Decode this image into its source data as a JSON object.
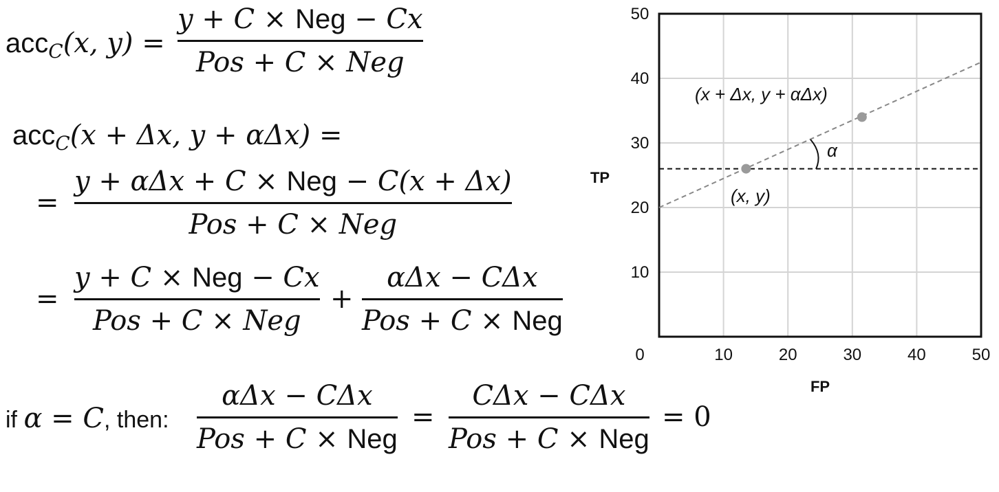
{
  "eq1": {
    "lhs_prefix": "acc",
    "lhs_sub": "C",
    "lhs_args": "(x, y) =",
    "num_a": "y + C × ",
    "num_neg": "Neg",
    "num_b": " − Cx",
    "den": "Pos + C × Neg"
  },
  "eq2": {
    "lhs_prefix": "acc",
    "lhs_sub": "C",
    "lhs_args": "(x + Δx, y + αΔx) =",
    "eq_sign": "=",
    "num_a": "y + αΔx + C × ",
    "num_neg": "Neg",
    "num_b": " − C(x + Δx)",
    "den": "Pos + C × Neg"
  },
  "eq3": {
    "eq_sign": "=",
    "f1_num_a": "y + C × ",
    "f1_num_neg": "Neg",
    "f1_num_b": " − Cx",
    "f1_den": "Pos + C × Neg",
    "plus": "+",
    "f2_num": "αΔx − CΔx",
    "f2_den_a": "Pos + C × ",
    "f2_den_neg": "Neg"
  },
  "eq4": {
    "if_word": "if ",
    "cond": "α = C",
    "then_word": ", then: ",
    "f1_num": "αΔx − CΔx",
    "f1_den_a": "Pos + C × ",
    "f1_den_neg": "Neg",
    "eq_sign": "=",
    "f2_num": "CΔx − CΔx",
    "f2_den_a": "Pos + C × ",
    "f2_den_neg": "Neg",
    "result": "= 0"
  },
  "plot": {
    "xlabel": "FP",
    "ylabel": "TP",
    "xticks": [
      "0",
      "10",
      "20",
      "30",
      "40",
      "50"
    ],
    "yticks": [
      "10",
      "20",
      "30",
      "40",
      "50"
    ],
    "point1_label": "(x, y)",
    "point2_label": "(x + Δx, y + αΔx)",
    "angle_label": "α"
  },
  "chart_data": {
    "type": "scatter",
    "xlabel": "FP",
    "ylabel": "TP",
    "xlim": [
      0,
      50
    ],
    "ylim": [
      0,
      50
    ],
    "grid": true,
    "points": [
      {
        "label": "(x, y)",
        "x": 13.5,
        "y": 26
      },
      {
        "label": "(x + Δx, y + αΔx)",
        "x": 31.5,
        "y": 34
      }
    ],
    "lines": [
      {
        "style": "dashed",
        "from": [
          0,
          20
        ],
        "to": [
          50,
          42.5
        ]
      },
      {
        "style": "dashed",
        "from": [
          0,
          26
        ],
        "to": [
          50,
          26
        ]
      }
    ]
  }
}
